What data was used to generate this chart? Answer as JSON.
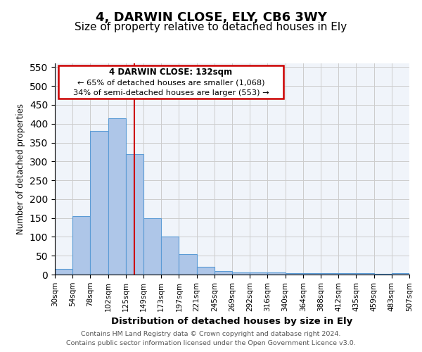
{
  "title": "4, DARWIN CLOSE, ELY, CB6 3WY",
  "subtitle": "Size of property relative to detached houses in Ely",
  "xlabel": "Distribution of detached houses by size in Ely",
  "ylabel": "Number of detached properties",
  "footer_line1": "Contains HM Land Registry data © Crown copyright and database right 2024.",
  "footer_line2": "Contains public sector information licensed under the Open Government Licence v3.0.",
  "annotation_line1": "4 DARWIN CLOSE: 132sqm",
  "annotation_line2": "← 65% of detached houses are smaller (1,068)",
  "annotation_line3": "34% of semi-detached houses are larger (553) →",
  "bin_labels": [
    "30sqm",
    "54sqm",
    "78sqm",
    "102sqm",
    "125sqm",
    "149sqm",
    "173sqm",
    "197sqm",
    "221sqm",
    "245sqm",
    "269sqm",
    "292sqm",
    "316sqm",
    "340sqm",
    "364sqm",
    "388sqm",
    "412sqm",
    "435sqm",
    "459sqm",
    "483sqm",
    "507sqm"
  ],
  "bar_heights": [
    15,
    155,
    380,
    415,
    320,
    150,
    100,
    55,
    20,
    10,
    5,
    5,
    5,
    4,
    4,
    3,
    3,
    3,
    2,
    4
  ],
  "bar_color": "#aec6e8",
  "bar_edge_color": "#5b9bd5",
  "vline_x": 4.5,
  "vline_color": "#cc0000",
  "ylim": [
    0,
    560
  ],
  "yticks": [
    0,
    50,
    100,
    150,
    200,
    250,
    300,
    350,
    400,
    450,
    500,
    550
  ],
  "grid_color": "#cccccc",
  "bg_color": "#f0f4fa",
  "annotation_box_color": "#cc0000",
  "title_fontsize": 13,
  "subtitle_fontsize": 11
}
